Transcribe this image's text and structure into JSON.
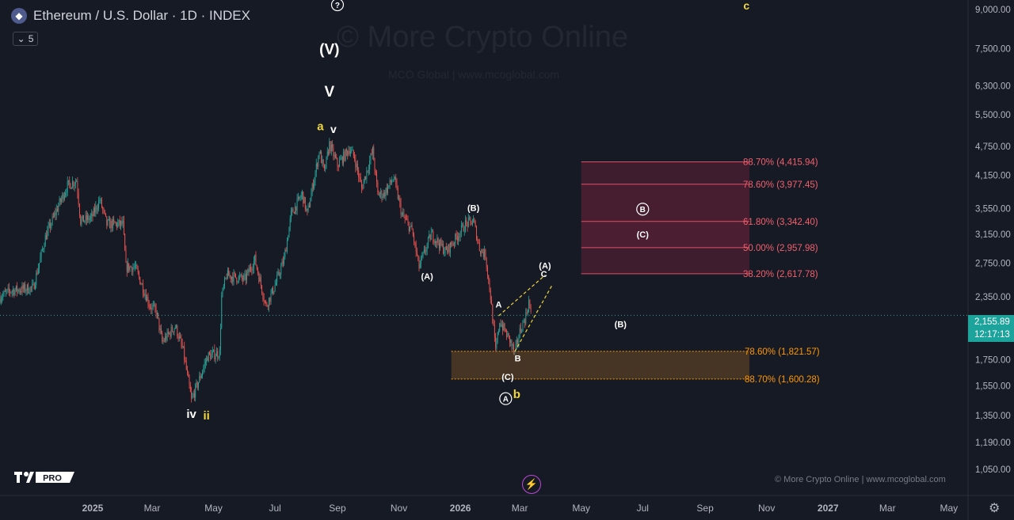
{
  "header": {
    "symbol_icon": "ethereum-icon",
    "title": "Ethereum / U.S. Dollar · 1D · INDEX",
    "indicator_count": "5"
  },
  "watermark": {
    "main": "© More Crypto Online",
    "sub": "MCO Global  |  www.mcoglobal.com"
  },
  "footer": {
    "credit": "© More Crypto Online  |  www.mcoglobal.com",
    "logo_text": "PRO"
  },
  "current_price": {
    "value": "2,155.89",
    "countdown": "12:17:13"
  },
  "colors": {
    "up": "#26a69a",
    "down": "#ef5350",
    "background": "#161a25",
    "fib_upper": "#f23645",
    "fib_lower": "#ff9800",
    "wave_yellow": "#f2d73b",
    "price_line": "#26a69a"
  },
  "chart_data": {
    "type": "candlestick",
    "y_scale": "log",
    "ylim": [
      1000,
      9000
    ],
    "x_range": [
      "2024-10-01",
      "2027-05-20"
    ],
    "y_ticks": [
      {
        "value": 9000,
        "label": "9,000.00"
      },
      {
        "value": 7500,
        "label": "7,500.00"
      },
      {
        "value": 6300,
        "label": "6,300.00"
      },
      {
        "value": 5500,
        "label": "5,500.00"
      },
      {
        "value": 4750,
        "label": "4,750.00"
      },
      {
        "value": 4150,
        "label": "4,150.00"
      },
      {
        "value": 3550,
        "label": "3,550.00"
      },
      {
        "value": 3150,
        "label": "3,150.00"
      },
      {
        "value": 2750,
        "label": "2,750.00"
      },
      {
        "value": 2350,
        "label": "2,350.00"
      },
      {
        "value": 1750,
        "label": "1,750.00"
      },
      {
        "value": 1550,
        "label": "1,550.00"
      },
      {
        "value": 1350,
        "label": "1,350.00"
      },
      {
        "value": 1190,
        "label": "1,190.00"
      },
      {
        "value": 1050,
        "label": "1,050.00"
      }
    ],
    "x_ticks": [
      {
        "date": "2025-01-01",
        "label": "2025",
        "bold": true
      },
      {
        "date": "2025-03-01",
        "label": "Mar"
      },
      {
        "date": "2025-05-01",
        "label": "May"
      },
      {
        "date": "2025-07-01",
        "label": "Jul"
      },
      {
        "date": "2025-09-01",
        "label": "Sep"
      },
      {
        "date": "2025-11-01",
        "label": "Nov"
      },
      {
        "date": "2026-01-01",
        "label": "2026",
        "bold": true
      },
      {
        "date": "2026-03-01",
        "label": "Mar"
      },
      {
        "date": "2026-05-01",
        "label": "May"
      },
      {
        "date": "2026-07-01",
        "label": "Jul"
      },
      {
        "date": "2026-09-01",
        "label": "Sep"
      },
      {
        "date": "2026-11-01",
        "label": "Nov"
      },
      {
        "date": "2027-01-01",
        "label": "2027",
        "bold": true
      },
      {
        "date": "2027-03-01",
        "label": "Mar"
      },
      {
        "date": "2027-05-01",
        "label": "May"
      }
    ],
    "price_path": [
      [
        "2024-10-01",
        2350
      ],
      [
        "2024-10-12",
        2420
      ],
      [
        "2024-11-03",
        2450
      ],
      [
        "2024-11-15",
        3100
      ],
      [
        "2024-11-28",
        3600
      ],
      [
        "2024-12-07",
        3950
      ],
      [
        "2024-12-16",
        4050
      ],
      [
        "2024-12-20",
        3350
      ],
      [
        "2024-12-31",
        3400
      ],
      [
        "2025-01-08",
        3700
      ],
      [
        "2025-01-15",
        3300
      ],
      [
        "2025-01-31",
        3300
      ],
      [
        "2025-02-03",
        2700
      ],
      [
        "2025-02-12",
        2700
      ],
      [
        "2025-02-27",
        2250
      ],
      [
        "2025-03-05",
        2200
      ],
      [
        "2025-03-11",
        1900
      ],
      [
        "2025-03-24",
        2050
      ],
      [
        "2025-04-01",
        1820
      ],
      [
        "2025-04-09",
        1450
      ],
      [
        "2025-04-16",
        1580
      ],
      [
        "2025-04-25",
        1780
      ],
      [
        "2025-05-07",
        1810
      ],
      [
        "2025-05-09",
        2350
      ],
      [
        "2025-05-14",
        2600
      ],
      [
        "2025-06-01",
        2550
      ],
      [
        "2025-06-11",
        2800
      ],
      [
        "2025-06-22",
        2250
      ],
      [
        "2025-06-30",
        2450
      ],
      [
        "2025-07-10",
        2800
      ],
      [
        "2025-07-17",
        3450
      ],
      [
        "2025-07-28",
        3800
      ],
      [
        "2025-08-02",
        3450
      ],
      [
        "2025-08-10",
        4200
      ],
      [
        "2025-08-14",
        4650
      ],
      [
        "2025-08-19",
        4200
      ],
      [
        "2025-08-24",
        4800
      ],
      [
        "2025-09-01",
        4350
      ],
      [
        "2025-09-13",
        4700
      ],
      [
        "2025-09-18",
        4500
      ],
      [
        "2025-09-25",
        3900
      ],
      [
        "2025-10-06",
        4650
      ],
      [
        "2025-10-11",
        3800
      ],
      [
        "2025-10-17",
        3800
      ],
      [
        "2025-10-27",
        4100
      ],
      [
        "2025-11-04",
        3450
      ],
      [
        "2025-11-14",
        3200
      ],
      [
        "2025-11-21",
        2700
      ],
      [
        "2025-12-03",
        3150
      ],
      [
        "2025-12-18",
        2900
      ],
      [
        "2026-01-06",
        3300
      ],
      [
        "2026-01-14",
        3350
      ],
      [
        "2026-01-20",
        2950
      ],
      [
        "2026-01-26",
        2850
      ],
      [
        "2026-01-31",
        2350
      ],
      [
        "2026-02-05",
        1820
      ],
      [
        "2026-02-09",
        2100
      ],
      [
        "2026-02-20",
        1900
      ],
      [
        "2026-02-24",
        1800
      ],
      [
        "2026-03-01",
        2000
      ],
      [
        "2026-03-07",
        2150
      ],
      [
        "2026-03-10",
        2300
      ],
      [
        "2026-03-12",
        2156
      ]
    ],
    "current_price": 2155.89,
    "fib_zones": [
      {
        "label": "88.70% (4,415.94)",
        "value": 4415.94,
        "group": "upper"
      },
      {
        "label": "78.60% (3,977.45)",
        "value": 3977.45,
        "group": "upper"
      },
      {
        "label": "61.80% (3,342.40)",
        "value": 3342.4,
        "group": "upper"
      },
      {
        "label": "50.00% (2,957.98)",
        "value": 2957.98,
        "group": "upper"
      },
      {
        "label": "38.20% (2,617.78)",
        "value": 2617.78,
        "group": "upper"
      },
      {
        "label": "78.60% (1,821.57)",
        "value": 1821.57,
        "group": "lower"
      },
      {
        "label": "88.70% (1,600.28)",
        "value": 1600.28,
        "group": "lower"
      }
    ],
    "upper_zone_dates": [
      "2026-05-01",
      "2026-10-15"
    ],
    "lower_zone_dates": [
      "2025-12-23",
      "2026-10-15"
    ],
    "wave_labels": [
      {
        "text": "(V)",
        "date": "2025-08-24",
        "price": 7300,
        "color": "white",
        "size": 19
      },
      {
        "text": "V",
        "date": "2025-08-24",
        "price": 5990,
        "color": "white",
        "size": 19
      },
      {
        "text": "a",
        "date": "2025-08-15",
        "price": 5120,
        "color": "yellow",
        "size": 15
      },
      {
        "text": "v",
        "date": "2025-08-28",
        "price": 5050,
        "color": "white",
        "size": 14
      },
      {
        "text": "iv",
        "date": "2025-04-09",
        "price": 1335,
        "color": "white",
        "size": 15
      },
      {
        "text": "ii",
        "date": "2025-04-24",
        "price": 1325,
        "color": "yellow",
        "size": 15
      },
      {
        "text": "(B)",
        "date": "2026-01-14",
        "price": 3510,
        "color": "white",
        "size": 11
      },
      {
        "text": "(A)",
        "date": "2025-11-29",
        "price": 2550,
        "color": "white",
        "size": 11
      },
      {
        "text": "A",
        "date": "2026-02-08",
        "price": 2235,
        "color": "white",
        "size": 11
      },
      {
        "text": "B",
        "date": "2026-02-27",
        "price": 1740,
        "color": "white",
        "size": 11
      },
      {
        "text": "C",
        "date": "2026-03-25",
        "price": 2580,
        "color": "white",
        "size": 11
      },
      {
        "text": "(A)",
        "date": "2026-03-26",
        "price": 2680,
        "color": "white",
        "size": 11
      },
      {
        "text": "(B)",
        "date": "2026-06-09",
        "price": 2040,
        "color": "white",
        "size": 11
      },
      {
        "text": "(C)",
        "date": "2026-07-01",
        "price": 3100,
        "color": "white",
        "size": 11
      },
      {
        "text": "(C)",
        "date": "2026-02-17",
        "price": 1595,
        "color": "white",
        "size": 11
      },
      {
        "text": "b",
        "date": "2026-02-26",
        "price": 1465,
        "color": "yellow",
        "size": 15
      },
      {
        "text": "c",
        "date": "2026-10-12",
        "price": 9000,
        "color": "yellow",
        "size": 14
      }
    ],
    "circle_labels": [
      {
        "text": "A",
        "date": "2026-02-15",
        "price": 1460
      },
      {
        "text": "B",
        "date": "2026-07-01",
        "price": 3540
      },
      {
        "text": "?",
        "date": "2025-09-01",
        "price": 9200
      }
    ],
    "triangle": [
      {
        "from": [
          "2026-02-08",
          2150
        ],
        "to": [
          "2026-03-26",
          2600
        ]
      },
      {
        "from": [
          "2026-02-24",
          1820
        ],
        "to": [
          "2026-04-02",
          2480
        ]
      }
    ]
  }
}
